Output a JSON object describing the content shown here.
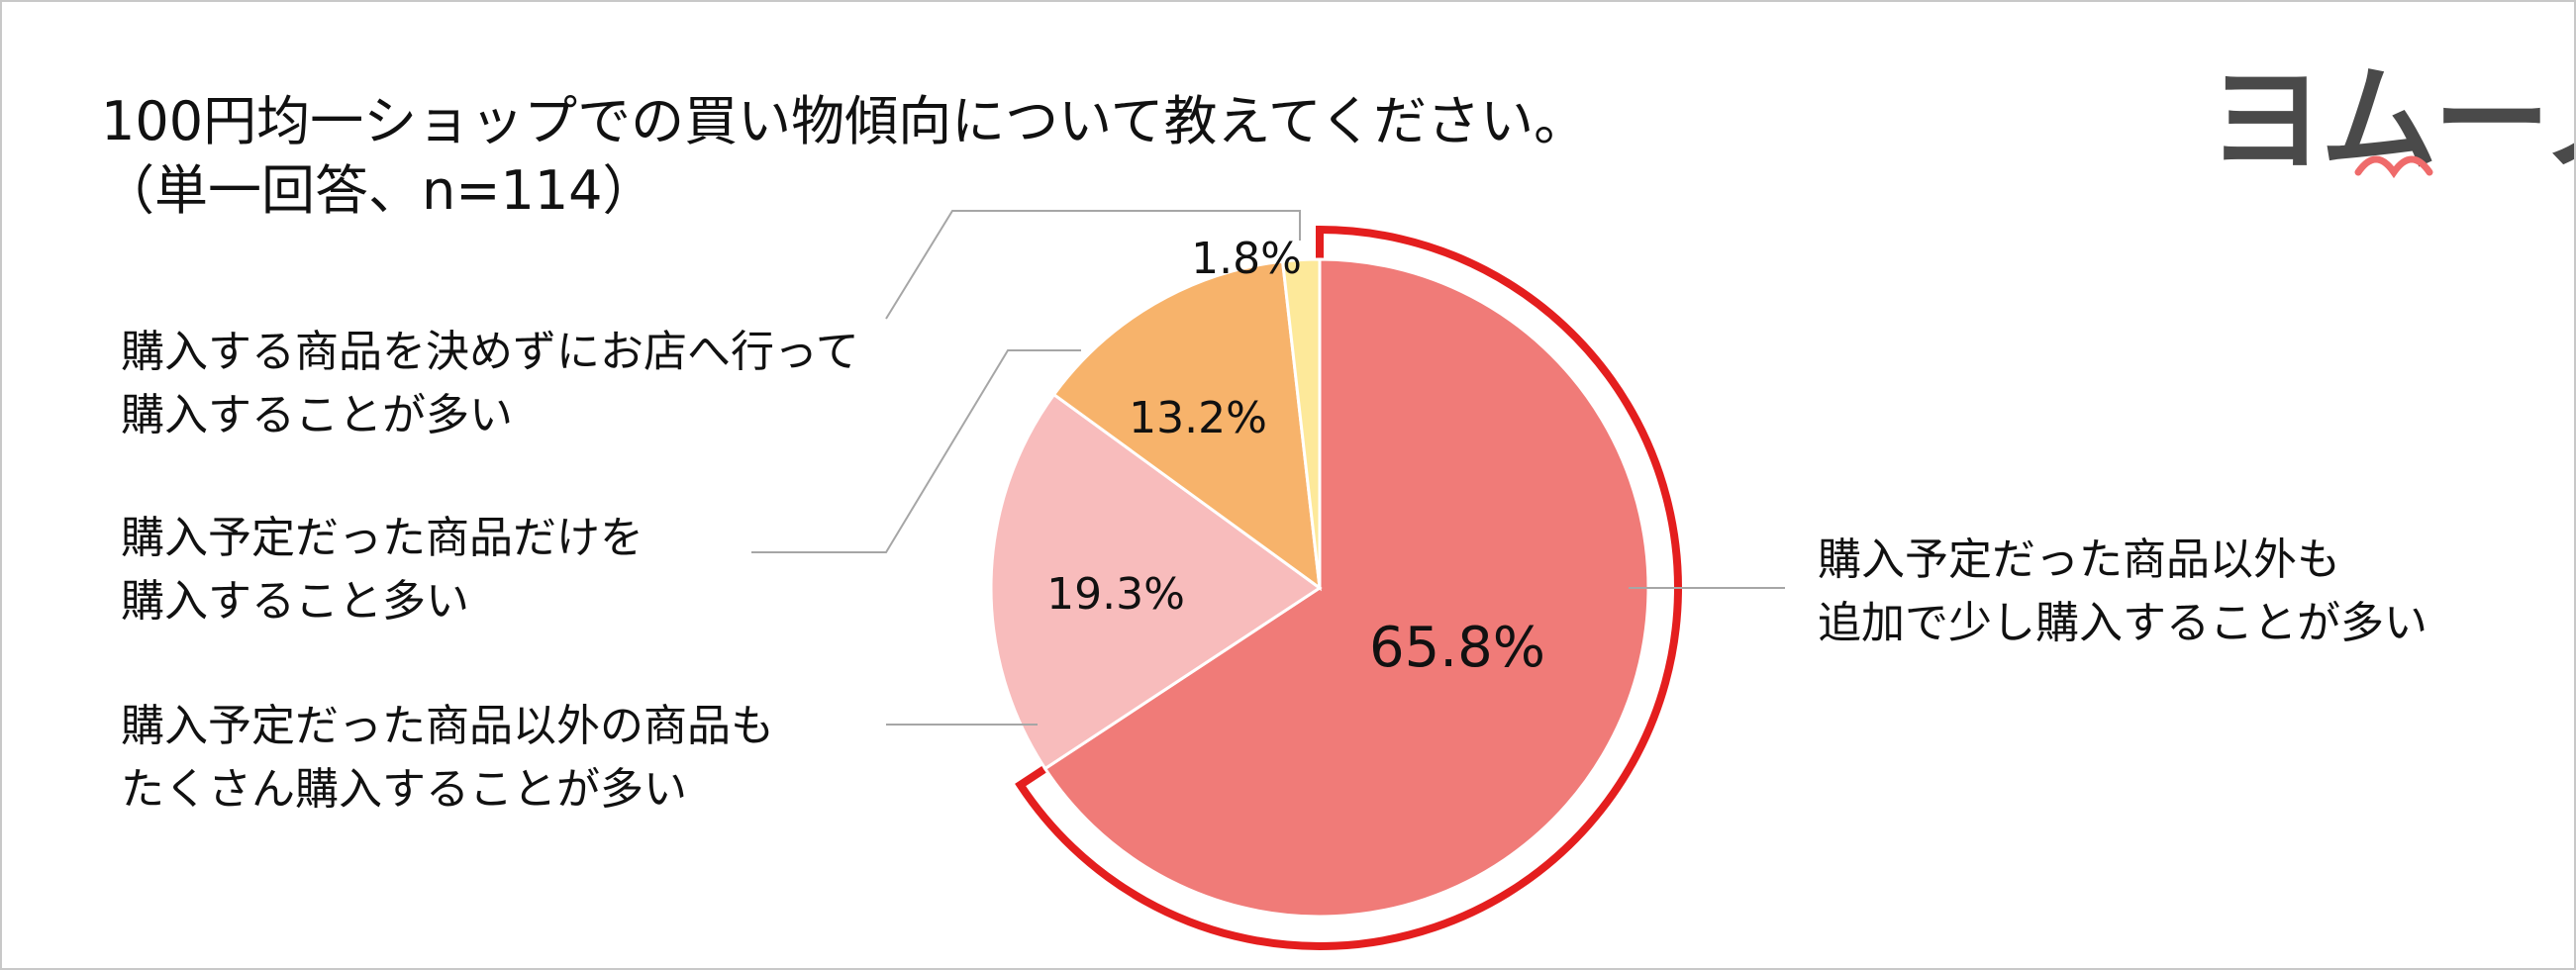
{
  "chart_data": {
    "type": "pie",
    "title": "100円均一ショップでの買い物傾向について教えてください。",
    "subtitle": "（単一回答、n=114）",
    "logo": "ヨムーノ",
    "categories": [
      "購入予定だった商品以外も\n追加で少し購入することが多い",
      "購入予定だった商品以外の商品も\nたくさん購入することが多い",
      "購入予定だった商品だけを\n購入すること多い",
      "購入する商品を決めずにお店へ行って\n購入することが多い"
    ],
    "values": [
      65.8,
      19.3,
      13.2,
      1.8
    ],
    "value_labels": [
      "65.8%",
      "19.3%",
      "13.2%",
      "1.8%"
    ],
    "colors": [
      "#f07b78",
      "#f8bcbc",
      "#f7b36b",
      "#fde99a"
    ],
    "highlight_color": "#e41e1e"
  }
}
